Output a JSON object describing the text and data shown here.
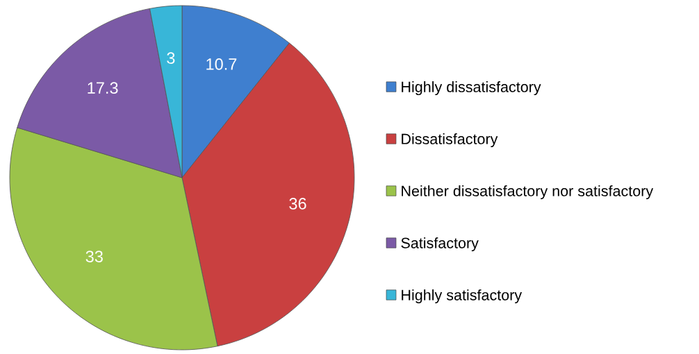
{
  "chart_data": {
    "type": "pie",
    "categories": [
      "Highly dissatisfactory",
      "Dissatisfactory",
      "Neither dissatisfactory nor satisfactory",
      "Satisfactory",
      "Highly satisfactory"
    ],
    "values": [
      10.7,
      36,
      33,
      17.3,
      3
    ],
    "colors": [
      "#3f7fcf",
      "#c94040",
      "#9bc34a",
      "#7b5aa6",
      "#38b6d8"
    ],
    "data_labels": true,
    "legend": "right"
  }
}
